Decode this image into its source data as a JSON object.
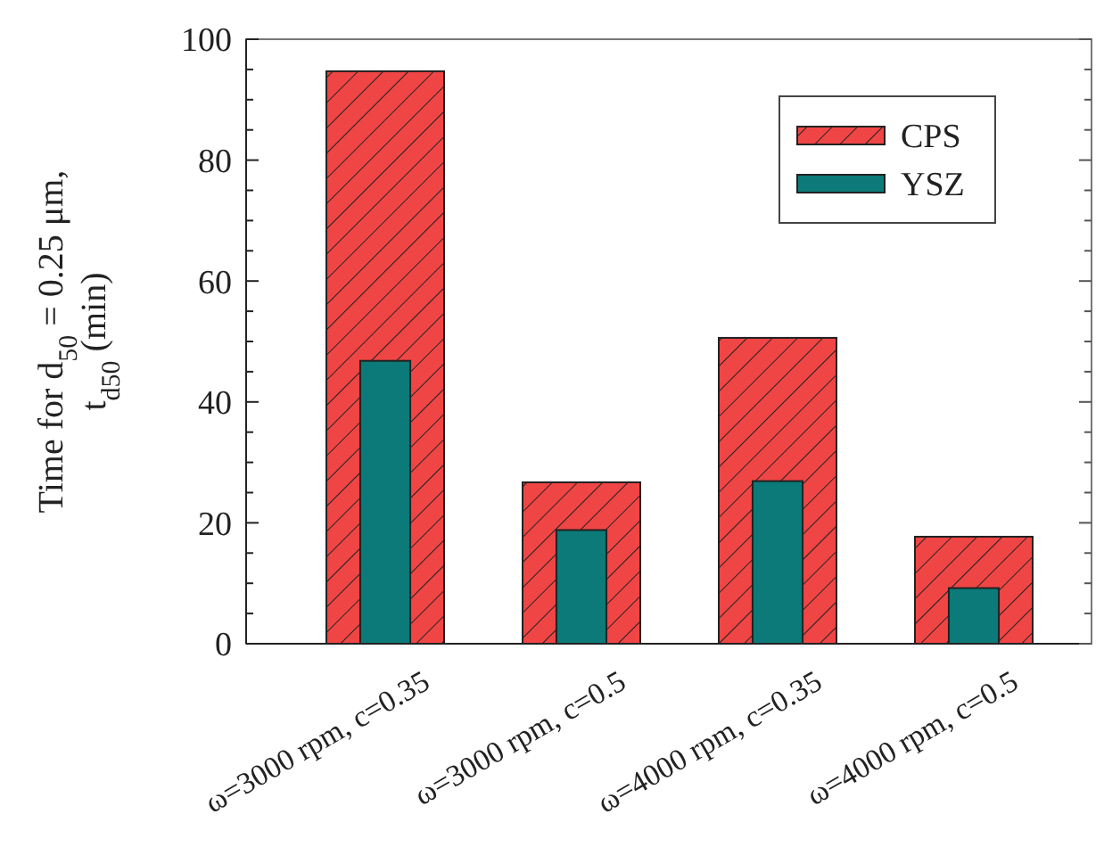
{
  "chart_data": {
    "type": "bar",
    "ylabel": "Time for d$_{50}$ = 0.25 μm,\nt$_{d50}$ (min)",
    "categories": [
      "ω=3000 rpm, c=0.35",
      "ω=3000 rpm, c=0.5",
      "ω=4000 rpm, c=0.35",
      "ω=4000 rpm, c=0.5"
    ],
    "series": [
      {
        "name": "CPS",
        "color": "#f04545",
        "values": [
          94.7,
          26.7,
          50.6,
          17.7
        ]
      },
      {
        "name": "YSZ",
        "color": "#0b7a78",
        "values": [
          46.8,
          18.8,
          26.9,
          9.2
        ]
      }
    ],
    "ylim": [
      0,
      100
    ],
    "yticks": [
      0,
      {
        "value": 5,
        "label": null
      },
      20,
      {
        "value": 10,
        "label": null
      },
      {
        "value": 15,
        "label": null
      },
      {
        "value": 25,
        "label": null
      },
      {
        "value": 30,
        "label": null
      },
      {
        "value": 35,
        "label": null
      },
      40,
      {
        "value": 45,
        "label": null
      },
      {
        "value": 50,
        "label": null
      },
      {
        "value": 55,
        "label": null
      },
      60,
      {
        "value": 65,
        "label": null
      },
      {
        "value": 70,
        "label": null
      },
      {
        "value": 75,
        "label": null
      },
      80,
      {
        "value": 85,
        "label": null
      },
      {
        "value": 90,
        "label": null
      },
      {
        "value": 95,
        "label": null
      },
      100
    ],
    "legend": "top right",
    "grid": false
  }
}
